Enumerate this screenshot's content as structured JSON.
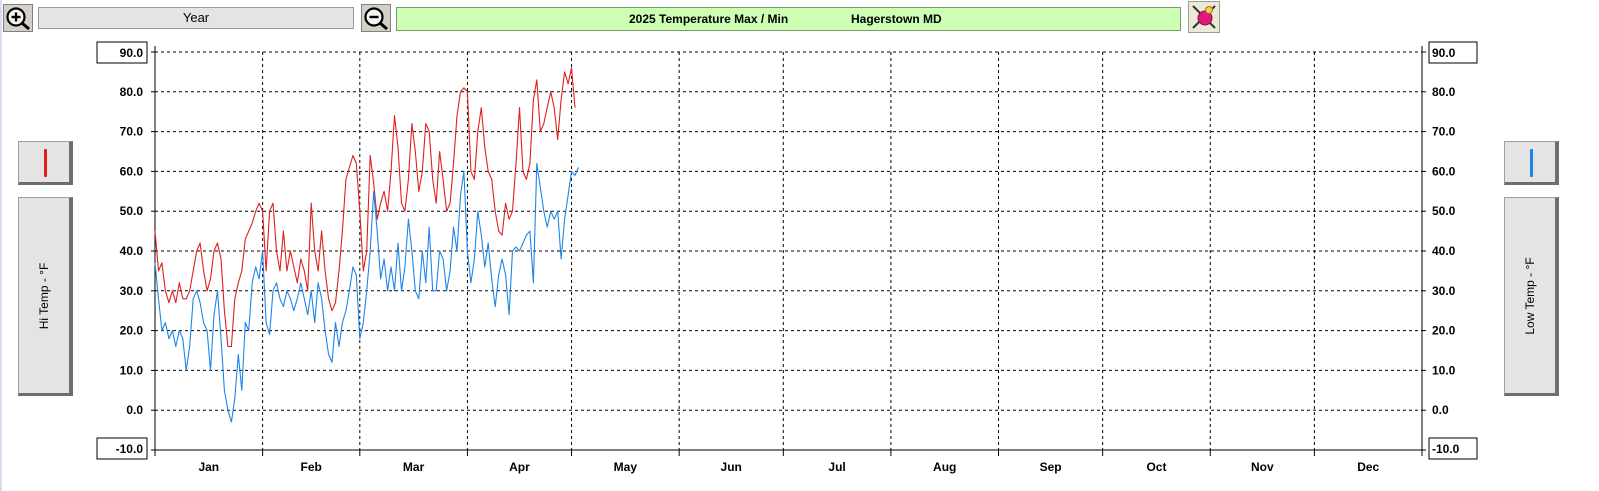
{
  "toolbar": {
    "zoom_in_icon": "zoom-in-icon",
    "zoom_out_icon": "zoom-out-icon",
    "export_icon": "export-icon",
    "range_label": "Year",
    "title_left": "2025  Temperature Max / Min",
    "title_right": "Hagerstown MD"
  },
  "legend": {
    "hi_color": "#e0201c",
    "low_color": "#1e86e8",
    "hi_axis_label": "Hi Temp - °F",
    "low_axis_label": "Low Temp - °F"
  },
  "chart_data": {
    "type": "line",
    "title": "2025  Temperature Max / Min",
    "ylabel": "Hi Temp - °F",
    "ylabel_right": "Low Temp - °F",
    "ylim": [
      -10,
      90
    ],
    "yticks": [
      90,
      80,
      70,
      60,
      50,
      40,
      30,
      20,
      10,
      0,
      -10
    ],
    "ytick_labels": [
      "90.0",
      "80.0",
      "70.0",
      "60.0",
      "50.0",
      "40.0",
      "30.0",
      "20.0",
      "10.0",
      "0.0",
      "-10.0"
    ],
    "xlim": [
      1,
      366
    ],
    "month_labels": [
      "Jan",
      "Feb",
      "Mar",
      "Apr",
      "May",
      "Jun",
      "Jul",
      "Aug",
      "Sep",
      "Oct",
      "Nov",
      "Dec"
    ],
    "month_starts": [
      1,
      32,
      60,
      91,
      121,
      152,
      182,
      213,
      244,
      274,
      305,
      335,
      366
    ],
    "grid": true,
    "series": [
      {
        "color": "#e0201c",
        "x": [
          1,
          2,
          3,
          4,
          5,
          6,
          7,
          8,
          9,
          10,
          11,
          12,
          13,
          14,
          15,
          16,
          17,
          18,
          19,
          20,
          21,
          22,
          23,
          24,
          25,
          26,
          27,
          28,
          29,
          30,
          31,
          32,
          33,
          34,
          35,
          36,
          37,
          38,
          39,
          40,
          41,
          42,
          43,
          44,
          45,
          46,
          47,
          48,
          49,
          50,
          51,
          52,
          53,
          54,
          55,
          56,
          57,
          58,
          59,
          60,
          61,
          62,
          63,
          64,
          65,
          66,
          67,
          68,
          69,
          70,
          71,
          72,
          73,
          74,
          75,
          76,
          77,
          78,
          79,
          80,
          81,
          82,
          83,
          84,
          85,
          86,
          87,
          88,
          89,
          90,
          91,
          92,
          93,
          94,
          95,
          96,
          97,
          98,
          99,
          100,
          101,
          102,
          103,
          104,
          105,
          106,
          107,
          108,
          109,
          110,
          111,
          112,
          113,
          114,
          115,
          116,
          117,
          118,
          119,
          120,
          121,
          122
        ],
        "values": [
          45,
          35,
          37,
          30,
          27,
          30,
          27,
          32,
          28,
          28,
          30,
          35,
          40,
          42,
          35,
          30,
          33,
          40,
          42,
          38,
          25,
          16,
          16,
          28,
          32,
          35,
          43,
          45,
          47,
          50,
          52,
          50,
          35,
          50,
          52,
          40,
          35,
          45,
          35,
          40,
          36,
          32,
          38,
          35,
          30,
          52,
          40,
          35,
          45,
          35,
          28,
          25,
          27,
          35,
          45,
          58,
          61,
          64,
          62,
          50,
          35,
          40,
          64,
          57,
          48,
          52,
          55,
          50,
          60,
          74,
          66,
          52,
          50,
          58,
          72,
          65,
          55,
          60,
          72,
          70,
          58,
          52,
          65,
          58,
          50,
          52,
          62,
          74,
          80,
          81,
          80,
          60,
          58,
          70,
          76,
          66,
          60,
          58,
          50,
          45,
          44,
          52,
          48,
          50,
          62,
          76,
          60,
          58,
          62,
          78,
          83,
          70,
          72,
          76,
          80,
          76,
          68,
          78,
          85,
          82,
          86,
          76
        ]
      },
      {
        "color": "#1e86e8",
        "x": [
          1,
          2,
          3,
          4,
          5,
          6,
          7,
          8,
          9,
          10,
          11,
          12,
          13,
          14,
          15,
          16,
          17,
          18,
          19,
          20,
          21,
          22,
          23,
          24,
          25,
          26,
          27,
          28,
          29,
          30,
          31,
          32,
          33,
          34,
          35,
          36,
          37,
          38,
          39,
          40,
          41,
          42,
          43,
          44,
          45,
          46,
          47,
          48,
          49,
          50,
          51,
          52,
          53,
          54,
          55,
          56,
          57,
          58,
          59,
          60,
          61,
          62,
          63,
          64,
          65,
          66,
          67,
          68,
          69,
          70,
          71,
          72,
          73,
          74,
          75,
          76,
          77,
          78,
          79,
          80,
          81,
          82,
          83,
          84,
          85,
          86,
          87,
          88,
          89,
          90,
          91,
          92,
          93,
          94,
          95,
          96,
          97,
          98,
          99,
          100,
          101,
          102,
          103,
          104,
          105,
          106,
          107,
          108,
          109,
          110,
          111,
          112,
          113,
          114,
          115,
          116,
          117,
          118,
          119,
          120,
          121,
          122,
          123
        ],
        "values": [
          37,
          28,
          20,
          22,
          18,
          20,
          16,
          20,
          18,
          10,
          16,
          28,
          30,
          27,
          22,
          20,
          10,
          24,
          30,
          18,
          5,
          0,
          -3,
          3,
          14,
          5,
          22,
          20,
          32,
          36,
          33,
          40,
          22,
          19,
          30,
          32,
          28,
          26,
          30,
          28,
          25,
          28,
          32,
          28,
          24,
          30,
          22,
          32,
          28,
          20,
          14,
          12,
          22,
          16,
          22,
          25,
          30,
          36,
          34,
          18,
          22,
          30,
          40,
          55,
          45,
          33,
          38,
          30,
          36,
          30,
          42,
          30,
          36,
          48,
          40,
          30,
          28,
          40,
          32,
          46,
          30,
          30,
          40,
          38,
          30,
          35,
          46,
          40,
          54,
          60,
          40,
          32,
          38,
          50,
          44,
          36,
          42,
          33,
          26,
          34,
          38,
          34,
          24,
          40,
          41,
          40,
          42,
          44,
          45,
          32,
          62,
          56,
          50,
          46,
          50,
          48,
          50,
          38,
          48,
          54,
          60,
          59,
          61
        ]
      }
    ]
  }
}
